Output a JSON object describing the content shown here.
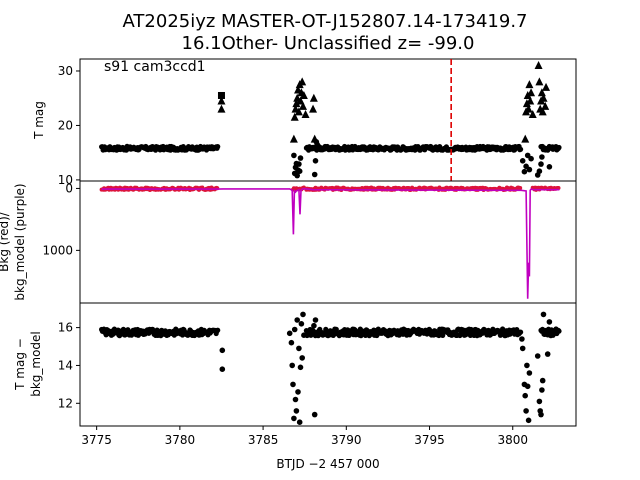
{
  "title": {
    "line1": "AT2025iyz  MASTER-OT-J152807.14-173419.7",
    "line2": "16.1Other- Unclassified z= -99.0"
  },
  "xlabel": "BTJD −2 457 000",
  "colors": {
    "points": "#000000",
    "bkg_red": "#dc143c",
    "bkg_model_purple": "#c000c0",
    "marker_line": "#dd0000"
  },
  "chart_data": [
    {
      "name": "panel-tmag",
      "type": "scatter",
      "annotation": "s91 cam3ccd1",
      "ylabel": "T mag",
      "xlim": [
        3774.0,
        3803.8
      ],
      "ylim": [
        32.2,
        9.8
      ],
      "y_inverted": true,
      "yticks": [
        10,
        20,
        30
      ],
      "vline_x": 3796.3,
      "baseline_mag": 15.8,
      "segments": [
        [
          3775.3,
          3782.3
        ],
        [
          3787.6,
          3800.5
        ],
        [
          3801.7,
          3802.8
        ]
      ],
      "points": [
        [
          3786.9,
          11.2
        ],
        [
          3786.95,
          12.3
        ],
        [
          3787.0,
          13.0
        ],
        [
          3787.05,
          10.8
        ],
        [
          3787.1,
          11.8
        ],
        [
          3787.15,
          12.9
        ],
        [
          3787.2,
          11.6
        ],
        [
          3786.85,
          14.5
        ],
        [
          3787.25,
          14.0
        ],
        [
          3788.1,
          11.0
        ],
        [
          3788.15,
          13.5
        ],
        [
          3788.2,
          17.0
        ],
        [
          3788.25,
          16.5
        ],
        [
          3800.6,
          13.5
        ],
        [
          3800.7,
          11.5
        ],
        [
          3800.8,
          12.5
        ],
        [
          3800.9,
          14.5
        ],
        [
          3801.0,
          11.9
        ],
        [
          3801.1,
          13.9
        ],
        [
          3801.5,
          10.9
        ],
        [
          3801.6,
          11.6
        ],
        [
          3801.7,
          12.9
        ],
        [
          3801.75,
          14.2
        ],
        [
          3802.2,
          12.4
        ]
      ],
      "triangles": [
        [
          3782.5,
          23.0
        ],
        [
          3782.5,
          24.5
        ],
        [
          3786.85,
          17.5
        ],
        [
          3786.9,
          21.5
        ],
        [
          3786.95,
          23.0
        ],
        [
          3787.0,
          24.0
        ],
        [
          3787.05,
          25.0
        ],
        [
          3787.1,
          26.5
        ],
        [
          3787.15,
          22.5
        ],
        [
          3787.2,
          27.5
        ],
        [
          3787.25,
          24.5
        ],
        [
          3787.3,
          26.0
        ],
        [
          3787.35,
          28.0
        ],
        [
          3787.4,
          23.5
        ],
        [
          3787.45,
          25.5
        ],
        [
          3787.55,
          22.0
        ],
        [
          3788.0,
          23.0
        ],
        [
          3788.05,
          25.0
        ],
        [
          3788.1,
          17.5
        ],
        [
          3800.75,
          17.5
        ],
        [
          3800.8,
          22.5
        ],
        [
          3800.85,
          24.0
        ],
        [
          3800.9,
          25.5
        ],
        [
          3800.95,
          23.0
        ],
        [
          3801.0,
          27.5
        ],
        [
          3801.05,
          24.5
        ],
        [
          3801.1,
          26.0
        ],
        [
          3801.2,
          22.0
        ],
        [
          3801.55,
          31.0
        ],
        [
          3801.6,
          28.0
        ],
        [
          3801.65,
          23.0
        ],
        [
          3801.7,
          24.5
        ],
        [
          3801.75,
          26.0
        ],
        [
          3801.8,
          22.5
        ],
        [
          3801.85,
          25.0
        ],
        [
          3801.95,
          23.5
        ],
        [
          3802.0,
          27.0
        ]
      ],
      "squares": [
        [
          3782.5,
          25.5
        ]
      ]
    },
    {
      "name": "panel-bkg",
      "type": "line",
      "ylabel_line1": "Bkg (red)/",
      "ylabel_line2": "bkg_model (purple)",
      "xlim": [
        3774.0,
        3803.8
      ],
      "ylim": [
        -120,
        1850
      ],
      "yticks": [
        0,
        1000
      ],
      "series": [
        {
          "label": "bkg_model",
          "color": "#c000c0",
          "x": [
            3775.3,
            3782.3,
            3782.6,
            3786.6,
            3786.75,
            3786.82,
            3786.88,
            3786.95,
            3787.0,
            3787.15,
            3787.22,
            3787.28,
            3787.35,
            3787.45,
            3788.0,
            3800.5,
            3800.8,
            3800.9,
            3800.95,
            3801.0,
            3801.05,
            3801.1,
            3801.25,
            3802.8
          ],
          "y": [
            10,
            10,
            8,
            8,
            30,
            740,
            40,
            60,
            40,
            20,
            420,
            30,
            10,
            5,
            20,
            30,
            40,
            1780,
            1200,
            1420,
            30,
            10,
            20,
            20
          ]
        }
      ],
      "red_segments": [
        [
          3775.3,
          3782.3
        ],
        [
          3786.8,
          3787.5
        ],
        [
          3787.6,
          3800.5
        ],
        [
          3801.2,
          3802.8
        ]
      ]
    },
    {
      "name": "panel-tmag-minus-bkg",
      "type": "scatter",
      "ylabel_line1": "T mag −",
      "ylabel_line2": "bkg_model",
      "xlim": [
        3774.0,
        3803.8
      ],
      "ylim": [
        17.3,
        10.8
      ],
      "y_inverted": true,
      "yticks": [
        12,
        14,
        16
      ],
      "xticks": [
        3775,
        3780,
        3785,
        3790,
        3795,
        3800
      ],
      "baseline_mag": 15.75,
      "segments": [
        [
          3775.3,
          3782.3
        ],
        [
          3787.6,
          3800.5
        ],
        [
          3801.7,
          3802.8
        ]
      ],
      "points": [
        [
          3782.55,
          13.8
        ],
        [
          3782.55,
          14.8
        ],
        [
          3786.6,
          15.7
        ],
        [
          3786.7,
          15.2
        ],
        [
          3786.75,
          14.0
        ],
        [
          3786.8,
          13.0
        ],
        [
          3786.85,
          11.2
        ],
        [
          3786.9,
          15.9
        ],
        [
          3786.95,
          12.2
        ],
        [
          3787.0,
          11.6
        ],
        [
          3787.05,
          16.4
        ],
        [
          3787.1,
          12.6
        ],
        [
          3787.15,
          14.9
        ],
        [
          3787.2,
          11.0
        ],
        [
          3787.25,
          13.9
        ],
        [
          3787.3,
          16.2
        ],
        [
          3787.35,
          14.4
        ],
        [
          3787.4,
          16.7
        ],
        [
          3787.45,
          15.6
        ],
        [
          3788.05,
          16.1
        ],
        [
          3788.1,
          11.4
        ],
        [
          3788.15,
          16.4
        ],
        [
          3800.55,
          15.4
        ],
        [
          3800.6,
          14.9
        ],
        [
          3800.7,
          13.0
        ],
        [
          3800.75,
          12.4
        ],
        [
          3800.8,
          11.6
        ],
        [
          3800.85,
          14.0
        ],
        [
          3800.9,
          12.9
        ],
        [
          3800.95,
          11.1
        ],
        [
          3801.0,
          13.6
        ],
        [
          3801.5,
          14.5
        ],
        [
          3801.6,
          12.1
        ],
        [
          3801.65,
          11.6
        ],
        [
          3801.7,
          11.4
        ],
        [
          3801.75,
          12.7
        ],
        [
          3801.8,
          13.2
        ],
        [
          3801.85,
          16.7
        ],
        [
          3802.1,
          14.6
        ],
        [
          3802.2,
          16.3
        ]
      ]
    }
  ]
}
